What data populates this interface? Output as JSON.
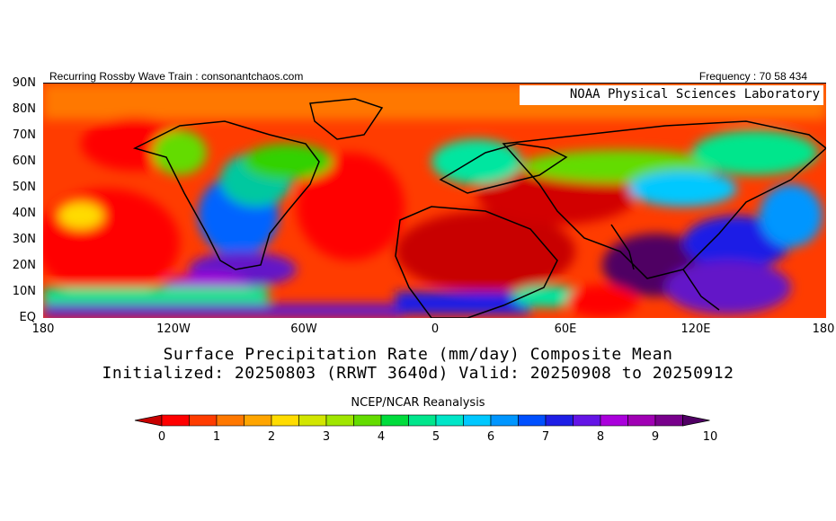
{
  "header": {
    "left": "Recurring Rossby Wave Train : consonantchaos.com",
    "right": "Frequency : 70 58 434",
    "lab": "NOAA Physical Sciences Laboratory"
  },
  "map": {
    "lat_labels": [
      "90N",
      "80N",
      "70N",
      "60N",
      "50N",
      "40N",
      "30N",
      "20N",
      "10N",
      "EQ"
    ],
    "lat_values": [
      90,
      80,
      70,
      60,
      50,
      40,
      30,
      20,
      10,
      0
    ],
    "lon_labels": [
      "180",
      "120W",
      "60W",
      "0",
      "60E",
      "120E",
      "180"
    ],
    "lon_values": [
      -180,
      -120,
      -60,
      0,
      60,
      120,
      180
    ]
  },
  "title": {
    "line1": "Surface Precipitation Rate (mm/day) Composite Mean",
    "line2": "Initialized: 20250803 (RRWT 3640d) Valid: 20250908 to 20250912"
  },
  "source": "NCEP/NCAR Reanalysis",
  "colorbar": {
    "labels": [
      "0",
      "1",
      "2",
      "3",
      "4",
      "5",
      "6",
      "7",
      "8",
      "9",
      "10"
    ],
    "colors": [
      "#c80000",
      "#ff0000",
      "#ff3c00",
      "#ff7800",
      "#ffa500",
      "#ffdc00",
      "#d2e600",
      "#a0e600",
      "#64dc00",
      "#00dc3c",
      "#00e68c",
      "#00e6c8",
      "#00c8ff",
      "#0096ff",
      "#0050ff",
      "#1e1ee6",
      "#6414e6",
      "#aa00dc",
      "#a000b4",
      "#78008c",
      "#500064"
    ]
  },
  "palette": {
    "dry": "#c80000",
    "red": "#ff0000",
    "orange": "#ff7800",
    "yellow": "#ffdc00",
    "green": "#32d200",
    "teal": "#00e6a0",
    "blue": "#0064ff",
    "purple": "#6414c8",
    "dark": "#500064"
  }
}
